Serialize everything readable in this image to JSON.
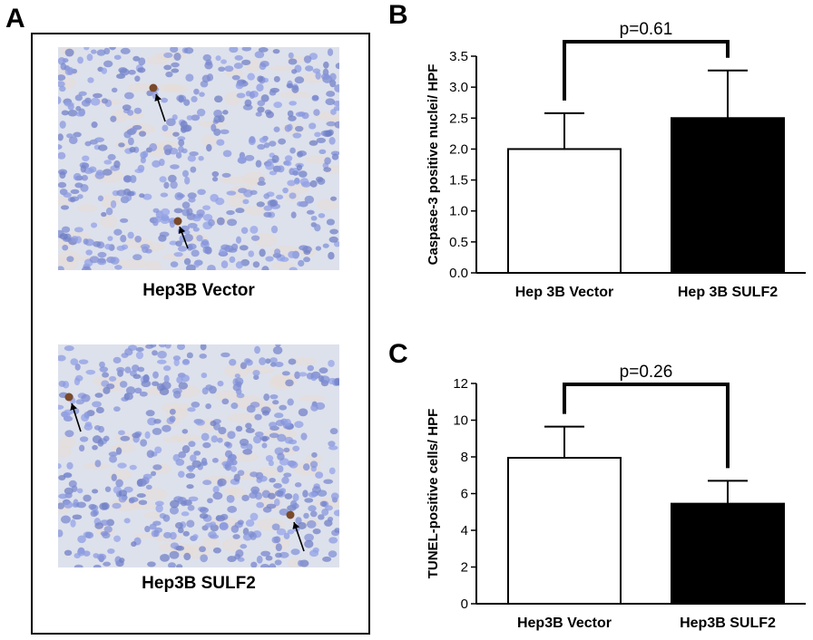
{
  "panels": {
    "a": "A",
    "b": "B",
    "c": "C"
  },
  "micrographs": [
    {
      "caption": "Hep3B Vector"
    },
    {
      "caption": "Hep3B SULF2"
    }
  ],
  "chart_data": [
    {
      "type": "bar",
      "panel": "B",
      "categories": [
        "Hep 3B Vector",
        "Hep 3B SULF2"
      ],
      "values": [
        2.0,
        2.5
      ],
      "error": [
        0.58,
        0.77
      ],
      "bar_colors": [
        "#ffffff",
        "#000000"
      ],
      "ylabel": "Caspase-3 positive nuclei/ HPF",
      "ylim": [
        0,
        3.5
      ],
      "yticks": [
        "0.0",
        "0.5",
        "1.0",
        "1.5",
        "2.0",
        "2.5",
        "3.0",
        "3.5"
      ],
      "annotation": "p=0.61"
    },
    {
      "type": "bar",
      "panel": "C",
      "categories": [
        "Hep3B Vector",
        "Hep3B SULF2"
      ],
      "values": [
        7.95,
        5.45
      ],
      "error": [
        1.7,
        1.25
      ],
      "bar_colors": [
        "#ffffff",
        "#000000"
      ],
      "ylabel": "TUNEL-positive cells/ HPF",
      "ylim": [
        0,
        12
      ],
      "yticks": [
        "0",
        "2",
        "4",
        "6",
        "8",
        "10",
        "12"
      ],
      "annotation": "p=0.26"
    }
  ]
}
